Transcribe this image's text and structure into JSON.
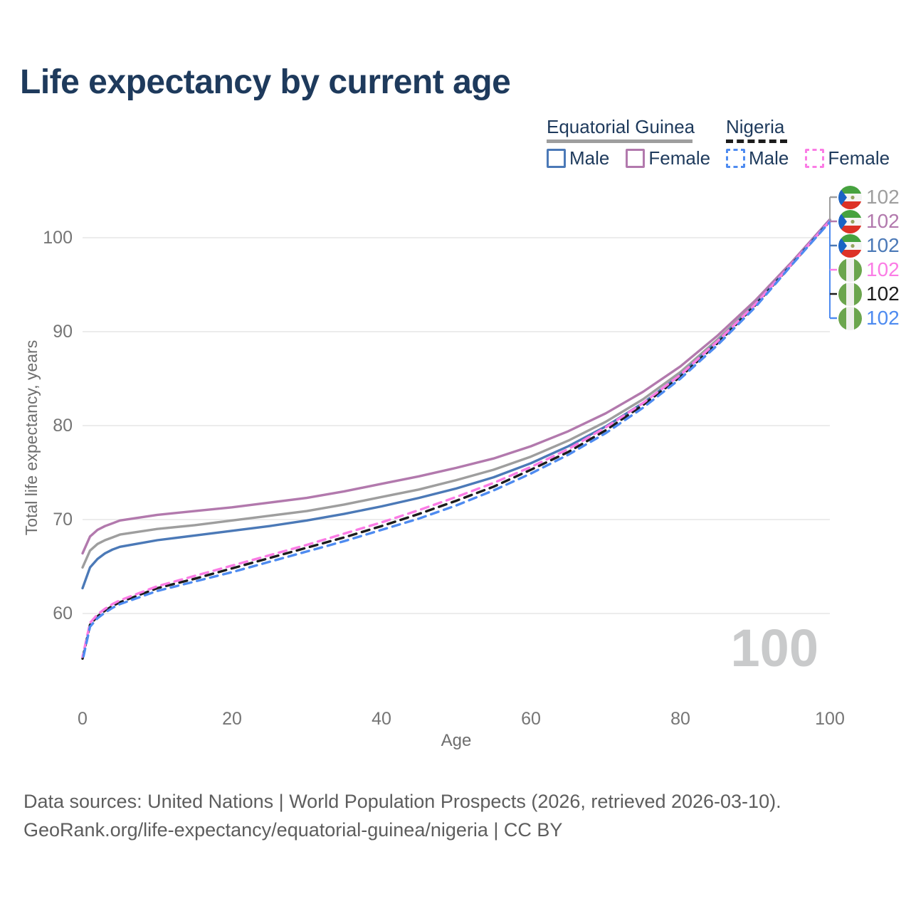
{
  "page": {
    "title": "Life expectancy by current age"
  },
  "legend": {
    "groups": [
      {
        "label": "Equatorial Guinea",
        "line_style": "solid",
        "color": "#9e9e9e"
      },
      {
        "label": "Nigeria",
        "line_style": "dashed",
        "color": "#1c1c1c"
      }
    ],
    "items": [
      {
        "label": "Male",
        "group": "Equatorial Guinea",
        "style": "solid",
        "color": "#4b79b7"
      },
      {
        "label": "Female",
        "group": "Equatorial Guinea",
        "style": "solid",
        "color": "#b279ad"
      },
      {
        "label": "Male",
        "group": "Nigeria",
        "style": "dashed",
        "color": "#4e8bf0"
      },
      {
        "label": "Female",
        "group": "Nigeria",
        "style": "dashed",
        "color": "#fb7ce5"
      }
    ]
  },
  "hover": {
    "age_label": "100"
  },
  "footer": {
    "line1": "Data sources: United Nations | World Population Prospects (2026, retrieved 2026-03-10).",
    "line2": "GeoRank.org/life-expectancy/equatorial-guinea/nigeria | CC BY"
  },
  "chart_data": {
    "type": "line",
    "title": "Life expectancy by current age",
    "xlabel": "Age",
    "ylabel": "Total life expectancy, years",
    "xlim": [
      0,
      100
    ],
    "ylim": [
      54,
      103
    ],
    "xticks": [
      0,
      20,
      40,
      60,
      80,
      100
    ],
    "yticks": [
      100,
      90,
      80,
      70,
      60
    ],
    "grid": "horizontal",
    "legend_position": "top-right",
    "hovered_age": 100,
    "ages": [
      0,
      1,
      2,
      3,
      4,
      5,
      10,
      15,
      20,
      25,
      30,
      35,
      40,
      45,
      50,
      55,
      60,
      65,
      70,
      75,
      80,
      85,
      90,
      95,
      100
    ],
    "series": [
      {
        "id": "eg-total",
        "name": "Equatorial Guinea — Both sexes",
        "country": "Equatorial Guinea",
        "sex": "both",
        "flag": "equatorial-guinea-flag",
        "color": "#9e9e9e",
        "dashed": false,
        "end_label": "102",
        "values": [
          64.9,
          66.7,
          67.4,
          67.8,
          68.1,
          68.4,
          69.0,
          69.4,
          69.9,
          70.4,
          70.9,
          71.6,
          72.4,
          73.2,
          74.2,
          75.3,
          76.7,
          78.4,
          80.4,
          82.8,
          85.7,
          89.2,
          93.0,
          97.4,
          101.9
        ]
      },
      {
        "id": "eg-female",
        "name": "Equatorial Guinea — Female",
        "country": "Equatorial Guinea",
        "sex": "female",
        "flag": "equatorial-guinea-flag",
        "color": "#b279ad",
        "dashed": false,
        "end_label": "102",
        "values": [
          66.4,
          68.2,
          68.9,
          69.3,
          69.6,
          69.9,
          70.5,
          70.9,
          71.3,
          71.8,
          72.3,
          73.0,
          73.8,
          74.6,
          75.5,
          76.5,
          77.8,
          79.4,
          81.3,
          83.6,
          86.3,
          89.6,
          93.3,
          97.5,
          101.95
        ]
      },
      {
        "id": "eg-male",
        "name": "Equatorial Guinea — Male",
        "country": "Equatorial Guinea",
        "sex": "male",
        "flag": "equatorial-guinea-flag",
        "color": "#4b79b7",
        "dashed": false,
        "end_label": "102",
        "values": [
          62.7,
          64.9,
          65.8,
          66.4,
          66.8,
          67.1,
          67.8,
          68.3,
          68.8,
          69.3,
          69.9,
          70.6,
          71.4,
          72.3,
          73.3,
          74.5,
          76.0,
          77.8,
          79.9,
          82.4,
          85.4,
          89.0,
          92.9,
          97.3,
          101.85
        ]
      },
      {
        "id": "ng-female",
        "name": "Nigeria — Female",
        "country": "Nigeria",
        "sex": "female",
        "flag": "nigeria-flag",
        "color": "#fb7ce5",
        "dashed": true,
        "end_label": "102",
        "values": [
          55.4,
          59.0,
          59.9,
          60.5,
          61.0,
          61.4,
          62.9,
          64.0,
          65.1,
          66.2,
          67.3,
          68.5,
          69.7,
          71.0,
          72.4,
          73.9,
          75.6,
          77.5,
          79.8,
          82.4,
          85.4,
          89.0,
          92.9,
          97.3,
          101.8
        ]
      },
      {
        "id": "ng-total",
        "name": "Nigeria — Both sexes",
        "country": "Nigeria",
        "sex": "both",
        "flag": "nigeria-flag",
        "color": "#1c1c1c",
        "dashed": true,
        "end_label": "102",
        "values": [
          55.2,
          58.8,
          59.7,
          60.3,
          60.8,
          61.2,
          62.7,
          63.7,
          64.8,
          65.9,
          67.0,
          68.1,
          69.3,
          70.6,
          72.0,
          73.5,
          75.3,
          77.2,
          79.5,
          82.2,
          85.2,
          88.8,
          92.8,
          97.25,
          101.75
        ]
      },
      {
        "id": "ng-male",
        "name": "Nigeria — Male",
        "country": "Nigeria",
        "sex": "male",
        "flag": "nigeria-flag",
        "color": "#4e8bf0",
        "dashed": true,
        "end_label": "102",
        "values": [
          55.0,
          58.6,
          59.5,
          60.1,
          60.6,
          61.0,
          62.4,
          63.4,
          64.4,
          65.5,
          66.6,
          67.7,
          68.9,
          70.1,
          71.5,
          73.1,
          74.9,
          76.9,
          79.2,
          81.9,
          85.0,
          88.6,
          92.6,
          97.2,
          101.7
        ]
      }
    ]
  }
}
